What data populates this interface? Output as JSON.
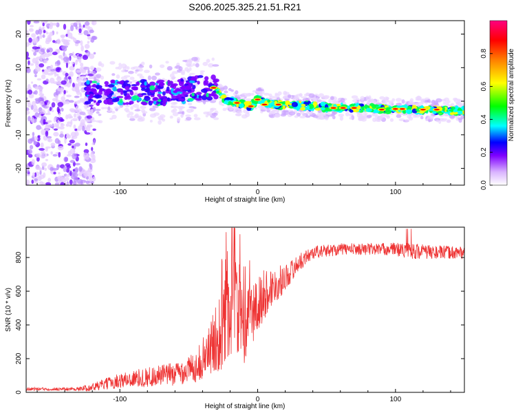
{
  "title": "S206.2025.325.21.51.R21",
  "chart_data": [
    {
      "type": "heatmap",
      "title": "S206.2025.325.21.51.R21",
      "xlabel": "Height of straight line (km)",
      "ylabel": "Frequency (Hz)",
      "xlim": [
        -168,
        150
      ],
      "ylim": [
        -25,
        24
      ],
      "xticks": [
        -100,
        0,
        100
      ],
      "yticks": [
        -20,
        -10,
        0,
        10,
        20
      ],
      "colorbar": {
        "label": "Normalized spectral amplitude",
        "range": [
          0,
          1
        ],
        "ticks": [
          0.0,
          0.2,
          0.4,
          0.6,
          0.8
        ],
        "colormap": [
          "#ffffff",
          "#d9b3ff",
          "#7f00ff",
          "#0000ff",
          "#00ffff",
          "#00ff00",
          "#ffff00",
          "#ff8000",
          "#ff0000",
          "#ff0080"
        ]
      },
      "ridge": {
        "x": [
          -125,
          -110,
          -90,
          -70,
          -55,
          -40,
          -32,
          -25,
          -15,
          -5,
          0,
          10,
          20,
          40,
          60,
          80,
          100,
          120,
          150
        ],
        "freq": [
          2.5,
          2.5,
          2.5,
          2.5,
          3,
          4,
          4,
          1,
          -0.5,
          -1.5,
          0.5,
          -1,
          -1,
          -1.5,
          -2,
          -2,
          -2.5,
          -2.5,
          -3
        ]
      }
    },
    {
      "type": "line",
      "xlabel": "Height of straight line (km)",
      "ylabel": "SNR (10 * v/v)",
      "xlim": [
        -168,
        150
      ],
      "ylim": [
        0,
        980
      ],
      "xticks": [
        -100,
        0,
        100
      ],
      "yticks": [
        0,
        200,
        400,
        600,
        800
      ],
      "color": "#ee3333",
      "envelope": {
        "x": [
          -168,
          -130,
          -120,
          -100,
          -80,
          -60,
          -45,
          -35,
          -25,
          -20,
          -15,
          -10,
          -5,
          0,
          5,
          10,
          20,
          30,
          40,
          60,
          80,
          100,
          110,
          130,
          150
        ],
        "mean": [
          20,
          20,
          30,
          70,
          90,
          110,
          150,
          250,
          400,
          500,
          550,
          350,
          450,
          500,
          580,
          620,
          680,
          770,
          830,
          850,
          850,
          850,
          840,
          830,
          830
        ],
        "spread": [
          10,
          10,
          25,
          45,
          60,
          70,
          90,
          150,
          260,
          320,
          320,
          200,
          200,
          200,
          150,
          120,
          80,
          50,
          40,
          35,
          35,
          40,
          50,
          40,
          40
        ]
      }
    }
  ]
}
